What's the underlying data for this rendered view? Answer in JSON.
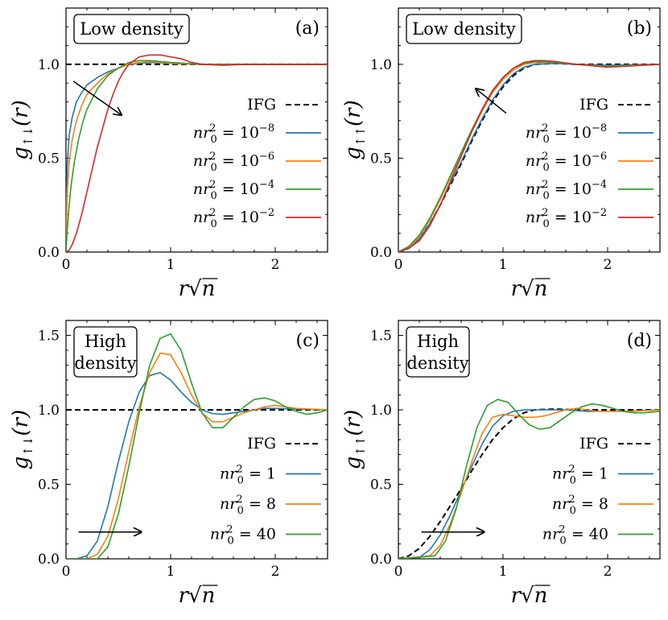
{
  "chart_data": [
    {
      "panel": "(a)",
      "type": "line",
      "box_label": [
        "Low density"
      ],
      "ylabel": "g↑↓(r)",
      "xlabel": "r√n",
      "xlim": [
        0,
        2.5
      ],
      "ylim": [
        0,
        1.3
      ],
      "xticks": [
        "0",
        "1",
        "2"
      ],
      "yticks": [
        "0.0",
        "0.5",
        "1.0"
      ],
      "arrow": {
        "from": [
          0.07,
          0.91
        ],
        "to": [
          0.53,
          0.73
        ]
      },
      "series": [
        {
          "name": "IFG",
          "exp": "",
          "color": "#000000",
          "dashed": true,
          "x": [
            0,
            2.5
          ],
          "y": [
            1.0,
            1.0
          ]
        },
        {
          "name": "nr0^2 = 10^-8",
          "exp": "−8",
          "color": "#1f77b4",
          "dashed": false,
          "x": [
            0,
            0.01,
            0.03,
            0.06,
            0.1,
            0.15,
            0.2,
            0.3,
            0.4,
            0.5,
            0.6,
            0.7,
            0.8,
            1.0,
            1.3,
            1.6,
            2.0,
            2.5
          ],
          "y": [
            0,
            0.45,
            0.62,
            0.72,
            0.8,
            0.85,
            0.89,
            0.93,
            0.96,
            0.98,
            1.0,
            1.005,
            1.01,
            1.005,
            1.0,
            1.0,
            1.0,
            1.0
          ]
        },
        {
          "name": "nr0^2 = 10^-6",
          "exp": "−6",
          "color": "#ff7f0e",
          "dashed": false,
          "x": [
            0,
            0.01,
            0.03,
            0.06,
            0.1,
            0.15,
            0.2,
            0.3,
            0.4,
            0.5,
            0.6,
            0.7,
            0.8,
            1.0,
            1.3,
            1.6,
            2.0,
            2.5
          ],
          "y": [
            0,
            0.3,
            0.48,
            0.6,
            0.7,
            0.78,
            0.84,
            0.9,
            0.95,
            0.98,
            1.0,
            1.01,
            1.015,
            1.005,
            1.0,
            1.0,
            1.0,
            1.0
          ]
        },
        {
          "name": "nr0^2 = 10^-4",
          "exp": "−4",
          "color": "#2ca02c",
          "dashed": false,
          "x": [
            0,
            0.01,
            0.03,
            0.05,
            0.08,
            0.12,
            0.16,
            0.2,
            0.3,
            0.4,
            0.5,
            0.6,
            0.7,
            0.8,
            1.0,
            1.3,
            1.6,
            2.0,
            2.5
          ],
          "y": [
            0,
            0.1,
            0.25,
            0.36,
            0.48,
            0.6,
            0.69,
            0.76,
            0.87,
            0.94,
            0.98,
            1.01,
            1.02,
            1.02,
            1.01,
            1.0,
            1.0,
            1.0,
            1.0
          ]
        },
        {
          "name": "nr0^2 = 10^-2",
          "exp": "−2",
          "color": "#d62728",
          "dashed": false,
          "x": [
            0,
            0.03,
            0.06,
            0.1,
            0.15,
            0.2,
            0.25,
            0.3,
            0.35,
            0.4,
            0.45,
            0.5,
            0.55,
            0.6,
            0.7,
            0.8,
            0.9,
            1.0,
            1.1,
            1.2,
            1.3,
            1.5,
            1.7,
            2.0,
            2.5
          ],
          "y": [
            0,
            0.01,
            0.04,
            0.1,
            0.2,
            0.32,
            0.44,
            0.56,
            0.66,
            0.76,
            0.84,
            0.91,
            0.96,
            1.0,
            1.04,
            1.05,
            1.05,
            1.04,
            1.03,
            1.01,
            1.0,
            0.995,
            1.0,
            1.0,
            1.0
          ]
        }
      ]
    },
    {
      "panel": "(b)",
      "type": "line",
      "box_label": [
        "Low density"
      ],
      "ylabel": "g↑↑(r)",
      "xlabel": "r√n",
      "xlim": [
        0,
        2.5
      ],
      "ylim": [
        0,
        1.3
      ],
      "xticks": [
        "0",
        "1",
        "2"
      ],
      "yticks": [
        "0.0",
        "0.5",
        "1.0"
      ],
      "arrow": {
        "from": [
          1.03,
          0.74
        ],
        "to": [
          0.74,
          0.87
        ]
      },
      "series": [
        {
          "name": "IFG",
          "exp": "",
          "color": "#000000",
          "dashed": true,
          "x": [
            0,
            0.1,
            0.2,
            0.3,
            0.4,
            0.5,
            0.6,
            0.7,
            0.8,
            0.9,
            1.0,
            1.1,
            1.2,
            1.3,
            1.5,
            1.7,
            2.0,
            2.5
          ],
          "y": [
            0,
            0.02,
            0.07,
            0.15,
            0.25,
            0.36,
            0.47,
            0.59,
            0.7,
            0.8,
            0.88,
            0.94,
            0.98,
            1.0,
            1.005,
            1.0,
            1.0,
            1.0
          ]
        },
        {
          "name": "nr0^2 = 10^-8",
          "exp": "−8",
          "color": "#1f77b4",
          "dashed": false,
          "x": [
            0,
            0.1,
            0.2,
            0.3,
            0.4,
            0.5,
            0.6,
            0.7,
            0.8,
            0.9,
            1.0,
            1.1,
            1.2,
            1.3,
            1.5,
            1.7,
            2.0,
            2.5
          ],
          "y": [
            0,
            0.02,
            0.07,
            0.15,
            0.25,
            0.37,
            0.48,
            0.6,
            0.71,
            0.81,
            0.89,
            0.95,
            0.985,
            1.0,
            1.005,
            1.0,
            0.995,
            1.0
          ]
        },
        {
          "name": "nr0^2 = 10^-6",
          "exp": "−6",
          "color": "#ff7f0e",
          "dashed": false,
          "x": [
            0,
            0.1,
            0.2,
            0.3,
            0.4,
            0.5,
            0.6,
            0.7,
            0.8,
            0.9,
            1.0,
            1.1,
            1.2,
            1.3,
            1.5,
            1.7,
            2.0,
            2.5
          ],
          "y": [
            0,
            0.025,
            0.08,
            0.17,
            0.28,
            0.4,
            0.52,
            0.64,
            0.75,
            0.85,
            0.92,
            0.97,
            1.0,
            1.01,
            1.01,
            1.0,
            0.99,
            1.0
          ]
        },
        {
          "name": "nr0^2 = 10^-4",
          "exp": "−4",
          "color": "#2ca02c",
          "dashed": false,
          "x": [
            0,
            0.1,
            0.2,
            0.3,
            0.4,
            0.5,
            0.6,
            0.7,
            0.8,
            0.9,
            1.0,
            1.1,
            1.2,
            1.3,
            1.5,
            1.7,
            2.0,
            2.5
          ],
          "y": [
            0,
            0.03,
            0.09,
            0.18,
            0.29,
            0.41,
            0.53,
            0.65,
            0.76,
            0.86,
            0.93,
            0.98,
            1.005,
            1.015,
            1.01,
            1.0,
            0.99,
            1.0
          ]
        },
        {
          "name": "nr0^2 = 10^-2",
          "exp": "−2",
          "color": "#d62728",
          "dashed": false,
          "x": [
            0,
            0.1,
            0.2,
            0.3,
            0.4,
            0.5,
            0.6,
            0.7,
            0.8,
            0.9,
            1.0,
            1.1,
            1.2,
            1.3,
            1.4,
            1.5,
            1.7,
            2.0,
            2.5
          ],
          "y": [
            0,
            0.02,
            0.06,
            0.14,
            0.25,
            0.38,
            0.51,
            0.64,
            0.76,
            0.86,
            0.93,
            0.98,
            1.01,
            1.02,
            1.02,
            1.015,
            1.0,
            0.985,
            1.0
          ]
        }
      ]
    },
    {
      "panel": "(c)",
      "type": "line",
      "box_label": [
        "High",
        "density"
      ],
      "ylabel": "g↑↓(r)",
      "xlabel": "r√n",
      "xlim": [
        0,
        2.5
      ],
      "ylim": [
        0,
        1.6
      ],
      "xticks": [
        "0",
        "1",
        "2"
      ],
      "yticks": [
        "0.0",
        "0.5",
        "1.0",
        "1.5"
      ],
      "arrow": {
        "from": [
          0.12,
          0.18
        ],
        "to": [
          0.72,
          0.18
        ]
      },
      "series": [
        {
          "name": "IFG",
          "exp": "",
          "color": "#000000",
          "dashed": true,
          "x": [
            0,
            2.5
          ],
          "y": [
            1.0,
            1.0
          ]
        },
        {
          "name": "nr0^2 = 1",
          "exp": "",
          "value": "1",
          "color": "#1f77b4",
          "dashed": false,
          "x": [
            0,
            0.1,
            0.2,
            0.3,
            0.4,
            0.5,
            0.6,
            0.7,
            0.8,
            0.9,
            1.0,
            1.1,
            1.2,
            1.3,
            1.4,
            1.5,
            1.6,
            1.7,
            1.8,
            1.9,
            2.0,
            2.2,
            2.5
          ],
          "y": [
            0,
            0.0,
            0.02,
            0.12,
            0.35,
            0.65,
            0.92,
            1.12,
            1.23,
            1.25,
            1.2,
            1.12,
            1.05,
            1.0,
            0.975,
            0.97,
            0.98,
            0.99,
            1.0,
            1.01,
            1.01,
            1.005,
            1.0
          ]
        },
        {
          "name": "nr0^2 = 8",
          "exp": "",
          "value": "8",
          "color": "#ff7f0e",
          "dashed": false,
          "x": [
            0,
            0.2,
            0.3,
            0.4,
            0.5,
            0.6,
            0.7,
            0.8,
            0.9,
            1.0,
            1.1,
            1.2,
            1.3,
            1.4,
            1.5,
            1.6,
            1.7,
            1.8,
            1.9,
            2.0,
            2.1,
            2.2,
            2.5
          ],
          "y": [
            0,
            0.0,
            0.03,
            0.15,
            0.4,
            0.72,
            1.02,
            1.25,
            1.38,
            1.37,
            1.25,
            1.1,
            0.98,
            0.92,
            0.92,
            0.95,
            0.98,
            1.0,
            1.02,
            1.03,
            1.02,
            1.01,
            1.0
          ]
        },
        {
          "name": "nr0^2 = 40",
          "exp": "",
          "value": "40",
          "color": "#2ca02c",
          "dashed": false,
          "x": [
            0,
            0.3,
            0.4,
            0.5,
            0.6,
            0.7,
            0.8,
            0.9,
            1.0,
            1.1,
            1.2,
            1.3,
            1.4,
            1.5,
            1.6,
            1.7,
            1.8,
            1.9,
            2.0,
            2.1,
            2.2,
            2.3,
            2.4,
            2.5
          ],
          "y": [
            0,
            0.0,
            0.08,
            0.3,
            0.62,
            0.98,
            1.3,
            1.48,
            1.51,
            1.4,
            1.18,
            0.98,
            0.88,
            0.88,
            0.95,
            1.02,
            1.07,
            1.08,
            1.06,
            1.02,
            0.99,
            0.97,
            0.98,
            1.0
          ]
        }
      ]
    },
    {
      "panel": "(d)",
      "type": "line",
      "box_label": [
        "High",
        "density"
      ],
      "ylabel": "g↑↑(r)",
      "xlabel": "r√n",
      "xlim": [
        0,
        2.5
      ],
      "ylim": [
        0,
        1.6
      ],
      "xticks": [
        "0",
        "1",
        "2"
      ],
      "yticks": [
        "0.0",
        "0.5",
        "1.0",
        "1.5"
      ],
      "arrow": {
        "from": [
          0.22,
          0.18
        ],
        "to": [
          0.82,
          0.18
        ]
      },
      "series": [
        {
          "name": "IFG",
          "exp": "",
          "color": "#000000",
          "dashed": true,
          "x": [
            0,
            0.1,
            0.2,
            0.3,
            0.4,
            0.5,
            0.6,
            0.7,
            0.8,
            0.9,
            1.0,
            1.1,
            1.2,
            1.3,
            1.5,
            1.7,
            2.0,
            2.5
          ],
          "y": [
            0,
            0.02,
            0.07,
            0.15,
            0.25,
            0.36,
            0.47,
            0.59,
            0.7,
            0.8,
            0.88,
            0.94,
            0.98,
            1.0,
            1.005,
            1.0,
            1.0,
            1.0
          ]
        },
        {
          "name": "nr0^2 = 1",
          "exp": "",
          "value": "1",
          "color": "#1f77b4",
          "dashed": false,
          "x": [
            0,
            0.2,
            0.3,
            0.4,
            0.5,
            0.6,
            0.7,
            0.8,
            0.9,
            1.0,
            1.1,
            1.2,
            1.3,
            1.4,
            1.5,
            1.6,
            1.8,
            2.0,
            2.2,
            2.5
          ],
          "y": [
            0,
            0.01,
            0.06,
            0.16,
            0.3,
            0.46,
            0.62,
            0.77,
            0.89,
            0.96,
            0.99,
            1.0,
            1.0,
            1.0,
            1.0,
            1.0,
            0.99,
            0.99,
            0.99,
            1.0
          ]
        },
        {
          "name": "nr0^2 = 8",
          "exp": "",
          "value": "8",
          "color": "#ff7f0e",
          "dashed": false,
          "x": [
            0,
            0.3,
            0.4,
            0.5,
            0.6,
            0.7,
            0.8,
            0.9,
            1.0,
            1.1,
            1.2,
            1.3,
            1.4,
            1.5,
            1.6,
            1.7,
            1.8,
            1.9,
            2.0,
            2.2,
            2.5
          ],
          "y": [
            0,
            0.02,
            0.09,
            0.24,
            0.44,
            0.65,
            0.84,
            0.95,
            0.97,
            0.96,
            0.95,
            0.95,
            0.96,
            0.98,
            1.0,
            1.01,
            1.0,
            0.99,
            0.99,
            0.99,
            1.0
          ]
        },
        {
          "name": "nr0^2 = 40",
          "exp": "",
          "value": "40",
          "color": "#2ca02c",
          "dashed": false,
          "x": [
            0,
            0.35,
            0.45,
            0.55,
            0.65,
            0.75,
            0.85,
            0.95,
            1.05,
            1.15,
            1.25,
            1.35,
            1.45,
            1.55,
            1.65,
            1.75,
            1.85,
            1.95,
            2.05,
            2.15,
            2.25,
            2.35,
            2.5
          ],
          "y": [
            0,
            0.02,
            0.12,
            0.33,
            0.62,
            0.88,
            1.03,
            1.07,
            1.05,
            0.97,
            0.9,
            0.87,
            0.88,
            0.93,
            0.98,
            1.02,
            1.04,
            1.03,
            1.01,
            0.99,
            0.98,
            0.98,
            0.99
          ]
        }
      ]
    }
  ]
}
